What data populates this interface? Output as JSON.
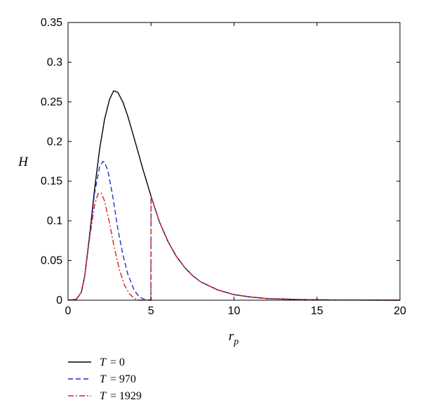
{
  "chart_data": {
    "type": "line",
    "title": "",
    "xlabel": "r",
    "xlabel_sub": "p",
    "ylabel": "H",
    "xlim": [
      0,
      20
    ],
    "ylim": [
      0,
      0.35
    ],
    "xticks": [
      0,
      5,
      10,
      15,
      20
    ],
    "xtick_labels": [
      "0",
      "5",
      "10",
      "15",
      "20"
    ],
    "yticks": [
      0,
      0.05,
      0.1,
      0.15,
      0.2,
      0.25,
      0.3,
      0.35
    ],
    "ytick_labels": [
      "0",
      "0.05",
      "0.1",
      "0.15",
      "0.2",
      "0.25",
      "0.3",
      "0.35"
    ],
    "grid": false,
    "legend_position": "below-left",
    "series": [
      {
        "name": "T = 0",
        "legend_var": "T",
        "legend_value": "= 0",
        "color": "#000000",
        "style": "solid",
        "x": [
          0,
          0.5,
          0.8,
          1.0,
          1.3,
          1.6,
          1.9,
          2.2,
          2.5,
          2.75,
          3.0,
          3.3,
          3.6,
          4.0,
          4.5,
          5.0,
          5.5,
          6.0,
          6.5,
          7.0,
          7.5,
          8.0,
          9.0,
          10.0,
          11.0,
          12.0,
          14.0,
          16.0,
          20.0
        ],
        "y": [
          0.0,
          0.001,
          0.01,
          0.03,
          0.082,
          0.14,
          0.19,
          0.228,
          0.253,
          0.264,
          0.262,
          0.25,
          0.232,
          0.203,
          0.166,
          0.131,
          0.099,
          0.075,
          0.056,
          0.042,
          0.031,
          0.023,
          0.013,
          0.007,
          0.004,
          0.002,
          0.0008,
          0.0003,
          0.0
        ]
      },
      {
        "name": "T = 970",
        "legend_var": "T",
        "legend_value": "= 970",
        "color": "#1f2fc8",
        "style": "dashed",
        "x": [
          0,
          0.5,
          0.8,
          1.0,
          1.3,
          1.6,
          1.9,
          2.1,
          2.2,
          2.4,
          2.7,
          3.0,
          3.3,
          3.6,
          4.0,
          4.3,
          4.6,
          4.99,
          5.0,
          5.5,
          6.0,
          6.5,
          7.0,
          7.5,
          8.0,
          9.0,
          10.0,
          11.0,
          12.0,
          14.0,
          16.0,
          20.0
        ],
        "y": [
          0.0,
          0.001,
          0.01,
          0.03,
          0.08,
          0.135,
          0.168,
          0.175,
          0.174,
          0.163,
          0.13,
          0.09,
          0.058,
          0.033,
          0.012,
          0.004,
          0.001,
          0.0,
          0.131,
          0.099,
          0.075,
          0.056,
          0.042,
          0.031,
          0.023,
          0.013,
          0.007,
          0.004,
          0.002,
          0.0008,
          0.0003,
          0.0
        ]
      },
      {
        "name": "T = 1929",
        "legend_var": "T",
        "legend_value": "= 1929",
        "color": "#e02020",
        "style": "dashdot",
        "x": [
          0,
          0.5,
          0.8,
          1.0,
          1.3,
          1.6,
          1.8,
          2.0,
          2.2,
          2.5,
          2.8,
          3.1,
          3.4,
          3.7,
          4.0,
          4.3,
          4.99,
          5.0,
          5.5,
          6.0,
          6.5,
          7.0,
          7.5,
          8.0,
          9.0,
          10.0,
          11.0,
          12.0,
          14.0,
          16.0,
          20.0
        ],
        "y": [
          0.0,
          0.001,
          0.01,
          0.03,
          0.078,
          0.12,
          0.134,
          0.135,
          0.125,
          0.097,
          0.065,
          0.038,
          0.019,
          0.008,
          0.002,
          0.0,
          0.0,
          0.131,
          0.099,
          0.075,
          0.056,
          0.042,
          0.031,
          0.023,
          0.013,
          0.007,
          0.004,
          0.002,
          0.0008,
          0.0003,
          0.0
        ]
      }
    ]
  }
}
